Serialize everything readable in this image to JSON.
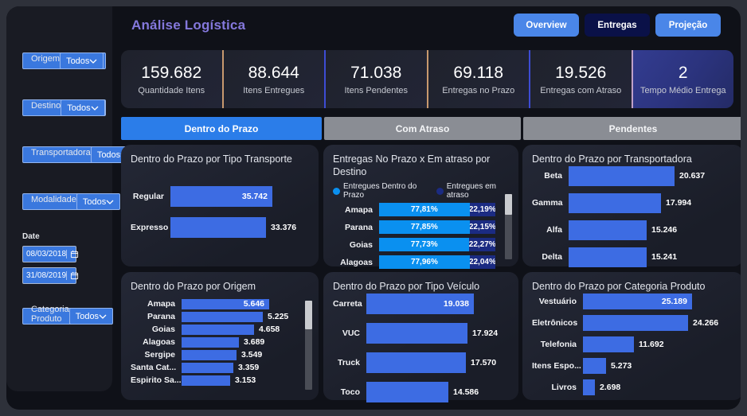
{
  "header": {
    "title": "Análise Logística",
    "nav": [
      {
        "label": "Overview",
        "active": false
      },
      {
        "label": "Entregas",
        "active": true
      },
      {
        "label": "Projeção",
        "active": false
      }
    ]
  },
  "sidebar": {
    "sections": [
      {
        "type": "dropdown",
        "label": "Origem",
        "value": "Todos"
      },
      {
        "type": "dropdown",
        "label": "Destino",
        "value": "Todos"
      },
      {
        "type": "dropdown",
        "label": "Transportadora",
        "value": "Todos"
      },
      {
        "type": "dropdown",
        "label": "Modalidade",
        "value": "Todos"
      },
      {
        "type": "daterange",
        "label": "Date",
        "from": "08/03/2018",
        "to": "31/08/2019"
      },
      {
        "type": "dropdown",
        "label": "Categoria Produto",
        "value": "Todos"
      }
    ]
  },
  "kpis": [
    {
      "value": "159.682",
      "label": "Quantidade Itens"
    },
    {
      "value": "88.644",
      "label": "Itens Entregues"
    },
    {
      "value": "71.038",
      "label": "Itens Pendentes"
    },
    {
      "value": "69.118",
      "label": "Entregas no Prazo"
    },
    {
      "value": "19.526",
      "label": "Entregas com Atraso"
    },
    {
      "value": "2",
      "label": "Tempo Médio Entrega",
      "accent": true
    }
  ],
  "kpi_dividers": [
    "#C8996E",
    "#3D4CD4",
    "#C8996E",
    "#3D4CD4",
    "#BFA0C8"
  ],
  "tabs": [
    {
      "label": "Dentro do Prazo",
      "active": true
    },
    {
      "label": "Com Atraso",
      "active": false
    },
    {
      "label": "Pendentes",
      "active": false
    }
  ],
  "colors": {
    "bar_blue": "#3D6CE3",
    "on_time_blue": "#0A90F0",
    "late_navy": "#1B2B82",
    "accent_purple": "#8478DC",
    "active_tab_blue": "#2B7DE9"
  },
  "chart_data": [
    {
      "type": "bar",
      "title": "Dentro do Prazo por Tipo Transporte",
      "bar_color": "#3D6CE3",
      "scrollbar": false,
      "rows": [
        {
          "category": "Regular",
          "value": 35742,
          "display": "35.742",
          "value_inside": true
        },
        {
          "category": "Expresso",
          "value": 33376,
          "display": "33.376",
          "value_inside": false
        }
      ]
    },
    {
      "type": "stacked-bar-100",
      "title": "Entregas No Prazo x Em atraso por Destino",
      "legend_position": "top",
      "scrollbar": true,
      "categories": [
        "Amapa",
        "Parana",
        "Goias",
        "Alagoas"
      ],
      "series": [
        {
          "name": "Entregues Dentro do Prazo",
          "color": "#0A90F0",
          "values": [
            77.81,
            77.85,
            77.73,
            77.96
          ],
          "labels": [
            "77,81%",
            "77,85%",
            "77,73%",
            "77,96%"
          ]
        },
        {
          "name": "Entregues em atraso",
          "color": "#1B2B82",
          "values": [
            22.19,
            22.15,
            22.27,
            22.04
          ],
          "labels": [
            "22,19%",
            "22,15%",
            "22,27%",
            "22,04%"
          ]
        }
      ]
    },
    {
      "type": "bar",
      "title": "Dentro do Prazo por Transportadora",
      "bar_color": "#3D6CE3",
      "scrollbar": false,
      "rows": [
        {
          "category": "Beta",
          "value": 20637,
          "display": "20.637",
          "value_inside": false
        },
        {
          "category": "Gamma",
          "value": 17994,
          "display": "17.994",
          "value_inside": false
        },
        {
          "category": "Alfa",
          "value": 15246,
          "display": "15.246",
          "value_inside": false
        },
        {
          "category": "Delta",
          "value": 15241,
          "display": "15.241",
          "value_inside": false
        }
      ]
    },
    {
      "type": "bar",
      "title": "Dentro do Prazo por Origem",
      "bar_color": "#3D6CE3",
      "scrollbar": true,
      "rows": [
        {
          "category": "Amapa",
          "value": 5646,
          "display": "5.646",
          "value_inside": true
        },
        {
          "category": "Parana",
          "value": 5225,
          "display": "5.225",
          "value_inside": false
        },
        {
          "category": "Goias",
          "value": 4658,
          "display": "4.658",
          "value_inside": false
        },
        {
          "category": "Alagoas",
          "value": 3689,
          "display": "3.689",
          "value_inside": false
        },
        {
          "category": "Sergipe",
          "value": 3549,
          "display": "3.549",
          "value_inside": false
        },
        {
          "category": "Santa Cat...",
          "value": 3359,
          "display": "3.359",
          "value_inside": false
        },
        {
          "category": "Espirito Sa...",
          "value": 3153,
          "display": "3.153",
          "value_inside": false
        }
      ]
    },
    {
      "type": "bar",
      "title": "Dentro do Prazo por Tipo Veículo",
      "bar_color": "#3D6CE3",
      "scrollbar": false,
      "rows": [
        {
          "category": "Carreta",
          "value": 19038,
          "display": "19.038",
          "value_inside": true
        },
        {
          "category": "VUC",
          "value": 17924,
          "display": "17.924",
          "value_inside": false
        },
        {
          "category": "Truck",
          "value": 17570,
          "display": "17.570",
          "value_inside": false
        },
        {
          "category": "Toco",
          "value": 14586,
          "display": "14.586",
          "value_inside": false
        }
      ]
    },
    {
      "type": "bar",
      "title": "Dentro do Prazo por Categoria Produto",
      "bar_color": "#3D6CE3",
      "scrollbar": false,
      "rows": [
        {
          "category": "Vestuário",
          "value": 25189,
          "display": "25.189",
          "value_inside": true
        },
        {
          "category": "Eletrônicos",
          "value": 24266,
          "display": "24.266",
          "value_inside": false
        },
        {
          "category": "Telefonia",
          "value": 11692,
          "display": "11.692",
          "value_inside": false
        },
        {
          "category": "Itens Espo...",
          "value": 5273,
          "display": "5.273",
          "value_inside": false
        },
        {
          "category": "Livros",
          "value": 2698,
          "display": "2.698",
          "value_inside": false
        }
      ]
    }
  ]
}
